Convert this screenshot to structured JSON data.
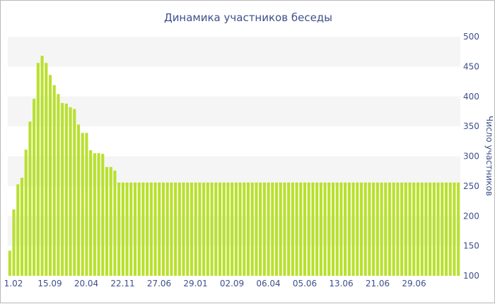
{
  "chart_data": {
    "type": "bar",
    "title": "Динамика участников беседы",
    "xlabel": "",
    "ylabel": "Число участников",
    "ylim": [
      100,
      500
    ],
    "yticks": [
      100,
      150,
      200,
      250,
      300,
      350,
      400,
      450,
      500
    ],
    "x_tick_labels": [
      "1.02",
      "15.09",
      "20.04",
      "22.11",
      "27.06",
      "29.01",
      "02.09",
      "06.04",
      "05.06",
      "13.06",
      "21.06",
      "29.06"
    ],
    "grid": "horizontal bands",
    "bar_color": "#b9e02d",
    "band_color": "#f5f5f5",
    "values": [
      142,
      211,
      253,
      264,
      311,
      358,
      396,
      456,
      468,
      456,
      436,
      419,
      404,
      389,
      388,
      382,
      379,
      353,
      339,
      339,
      310,
      305,
      305,
      304,
      282,
      282,
      276,
      256,
      256,
      256,
      256,
      256,
      256,
      256,
      256,
      256,
      256,
      256,
      256,
      256,
      256,
      256,
      256,
      256,
      256,
      256,
      256,
      256,
      256,
      256,
      256,
      256,
      256,
      256,
      256,
      256,
      256,
      256,
      256,
      256,
      256,
      256,
      256,
      256,
      256,
      256,
      256,
      256,
      256,
      256,
      256,
      256,
      256,
      256,
      256,
      256,
      256,
      256,
      256,
      256,
      256,
      256,
      256,
      256,
      256,
      256,
      256,
      256,
      256,
      256,
      256,
      256,
      256,
      256,
      256,
      256,
      256,
      256,
      256,
      256,
      256,
      256,
      256,
      256,
      256,
      256,
      256,
      256,
      256,
      256,
      256,
      256
    ]
  }
}
